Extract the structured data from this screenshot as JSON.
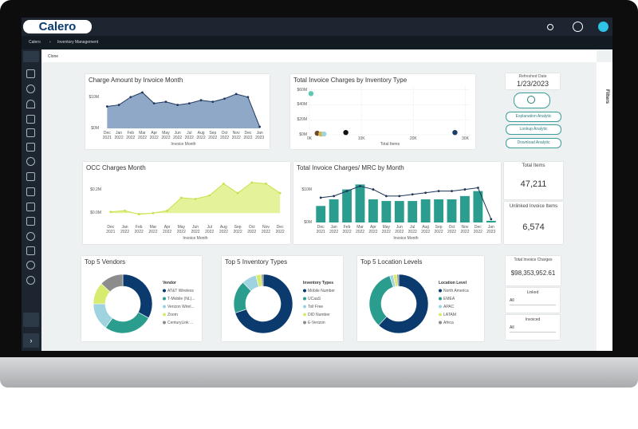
{
  "app": {
    "logo": "Calero",
    "breadcrumb": [
      "Calero",
      "Inventory Management"
    ],
    "toolbar": "Clone",
    "filters": "Filters"
  },
  "refresh": {
    "label": "Refreshed Date",
    "date": "1/23/2023",
    "buttons": [
      "Explanation Analytic",
      "Lookup Analytic",
      "Download Analytic"
    ]
  },
  "kpis": [
    {
      "label": "Total Items",
      "value": "47,211"
    },
    {
      "label": "Unlinked Invoice Items",
      "value": "6,574"
    },
    {
      "label": "Total Invoice Charges",
      "value": "$98,353,952.61"
    }
  ],
  "slicers": [
    {
      "label": "Linked",
      "value": "All"
    },
    {
      "label": "Invoiced",
      "value": "All"
    }
  ],
  "chart_data": [
    {
      "type": "area",
      "title": "Charge Amount by Invoice Month",
      "x_label": "Invoice Month",
      "categories": [
        "Dec 2021",
        "Jan 2022",
        "Feb 2022",
        "Mar 2022",
        "Apr 2022",
        "May 2022",
        "Jun 2022",
        "Jul 2022",
        "Aug 2022",
        "Sep 2022",
        "Oct 2022",
        "Nov 2022",
        "Dec 2022",
        "Jan 2023"
      ],
      "values": [
        7000000,
        7500000,
        10000000,
        11500000,
        8000000,
        8500000,
        7500000,
        8000000,
        9000000,
        8500000,
        9500000,
        11000000,
        10000000,
        500000
      ],
      "color": "#8fa8c8",
      "line_color": "#233a5e",
      "ylim": [
        0,
        13000000
      ],
      "yticks": [
        {
          "value": 0,
          "label": "$0M"
        },
        {
          "value": 10000000,
          "label": "$10M"
        }
      ]
    },
    {
      "type": "scatter",
      "title": "Total Invoice Charges by Inventory Type",
      "x_label": "Total Items",
      "x": [
        300,
        1500,
        2200,
        2800,
        7000,
        28000
      ],
      "values": [
        55000000,
        2000000,
        1000000,
        1000000,
        3000000,
        3000000
      ],
      "colors": [
        "#5cc9b4",
        "#6b4a2a",
        "#d4b84a",
        "#9fd3e0",
        "#111111",
        "#1d3d66"
      ],
      "xlim": [
        0,
        31000
      ],
      "xticks": [
        {
          "value": 0,
          "label": "0K"
        },
        {
          "value": 10000,
          "label": "10K"
        },
        {
          "value": 20000,
          "label": "20K"
        },
        {
          "value": 30000,
          "label": "30K"
        }
      ],
      "ylim": [
        0,
        65000000
      ],
      "yticks": [
        {
          "value": 0,
          "label": "$0M"
        },
        {
          "value": 20000000,
          "label": "$20M"
        },
        {
          "value": 40000000,
          "label": "$40M"
        },
        {
          "value": 60000000,
          "label": "$60M"
        }
      ],
      "grid": true
    },
    {
      "type": "area",
      "title": "OCC Charges Month",
      "x_label": "Invoice Month",
      "categories": [
        "Dec 2021",
        "Jan 2022",
        "Feb 2022",
        "Mar 2022",
        "Apr 2022",
        "May 2022",
        "Jun 2022",
        "Jul 2022",
        "Aug 2022",
        "Sep 2022",
        "Oct 2022",
        "Nov 2022",
        "Dec 2022"
      ],
      "values": [
        10000,
        20000,
        -10000,
        0,
        20000,
        130000,
        120000,
        150000,
        250000,
        170000,
        260000,
        250000,
        170000
      ],
      "color": "#e4f29a",
      "line_color": "#c9e04a",
      "ylim": [
        -80000,
        300000
      ],
      "yticks": [
        {
          "value": 0,
          "label": "$0.0M"
        },
        {
          "value": 200000,
          "label": "$0.2M"
        }
      ]
    },
    {
      "type": "combo",
      "title": "Total Invoice Charges/ MRC by Month",
      "x_label": "Invoice Month",
      "categories": [
        "Dec 2021",
        "Jan 2022",
        "Feb 2022",
        "Mar 2022",
        "Apr 2022",
        "May 2022",
        "Jun 2022",
        "Jul 2022",
        "Aug 2022",
        "Sep 2022",
        "Oct 2022",
        "Nov 2022",
        "Dec 2022",
        "Jan 2023"
      ],
      "series": [
        {
          "type": "bar",
          "color": "#2a9d8f",
          "values": [
            5000000,
            7000000,
            10000000,
            11500000,
            7000000,
            6500000,
            6500000,
            6500000,
            7000000,
            7000000,
            7000000,
            8000000,
            9500000,
            500000
          ]
        },
        {
          "type": "line",
          "color": "#1d3557",
          "values": [
            7500000,
            8000000,
            9500000,
            11000000,
            10000000,
            8000000,
            8000000,
            8500000,
            9000000,
            9500000,
            9500000,
            10000000,
            10500000,
            1000000
          ]
        }
      ],
      "ylim": [
        0,
        14000000
      ],
      "yticks": [
        {
          "value": 0,
          "label": "$0M"
        },
        {
          "value": 10000000,
          "label": "$10M"
        }
      ]
    },
    {
      "type": "donut",
      "title": "Top 5 Vendors",
      "legend_title": "Vendor",
      "categories": [
        "AT&T Wireless",
        "T-Mobile (NL)...",
        "Verizon Wirel...",
        "Zoom",
        "CenturyLink ..."
      ],
      "values": [
        33,
        27,
        15,
        12,
        13
      ],
      "colors": [
        "#0b3b6e",
        "#2a9d8f",
        "#9fd3e0",
        "#d7ec6f",
        "#8c8c8c"
      ]
    },
    {
      "type": "donut",
      "title": "Top 5 Inventory Types",
      "legend_title": "Inventory Types",
      "categories": [
        "Mobile Number",
        "UCaaS",
        "Toll Free",
        "DID Number",
        "E-Verizon"
      ],
      "values": [
        70,
        18,
        8,
        3,
        1
      ],
      "colors": [
        "#0b3b6e",
        "#2a9d8f",
        "#9fd3e0",
        "#d7ec6f",
        "#8c8c8c"
      ]
    },
    {
      "type": "donut",
      "title": "Top 5 Location Levels",
      "legend_title": "Location Level",
      "categories": [
        "North America",
        "EMEA",
        "APAC",
        "LATAM",
        "Africa"
      ],
      "values": [
        62,
        33,
        2,
        2,
        1
      ],
      "colors": [
        "#0b3b6e",
        "#2a9d8f",
        "#9fd3e0",
        "#d7ec6f",
        "#8c8c8c"
      ]
    }
  ]
}
